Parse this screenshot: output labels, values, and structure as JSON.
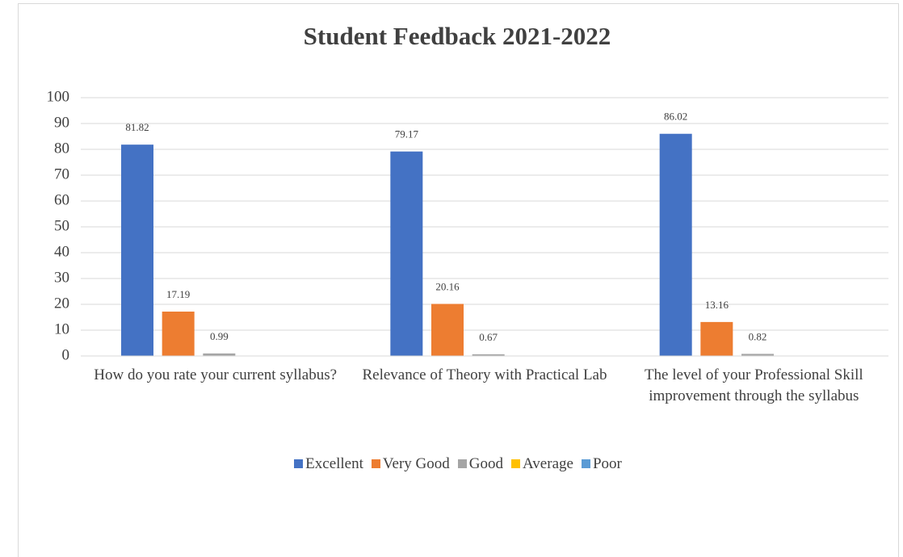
{
  "chart_data": {
    "type": "bar",
    "title": "Student Feedback 2021-2022",
    "categories": [
      "How do you rate your current syllabus?",
      "Relevance of Theory with Practical Lab",
      "The level of your Professional Skill improvement through the syllabus"
    ],
    "series": [
      {
        "name": "Excellent",
        "color": "#4472c4",
        "values": [
          81.82,
          79.17,
          86.02
        ]
      },
      {
        "name": "Very Good",
        "color": "#ed7d31",
        "values": [
          17.19,
          20.16,
          13.16
        ]
      },
      {
        "name": "Good",
        "color": "#a5a5a5",
        "values": [
          0.99,
          0.67,
          0.82
        ]
      },
      {
        "name": "Average",
        "color": "#ffc000",
        "values": [
          null,
          null,
          null
        ]
      },
      {
        "name": "Poor",
        "color": "#5b9bd5",
        "values": [
          null,
          null,
          null
        ]
      }
    ],
    "ylim": [
      0,
      100
    ],
    "yticks": [
      0,
      10,
      20,
      30,
      40,
      50,
      60,
      70,
      80,
      90,
      100
    ],
    "grid": true,
    "legend": "bottom"
  }
}
